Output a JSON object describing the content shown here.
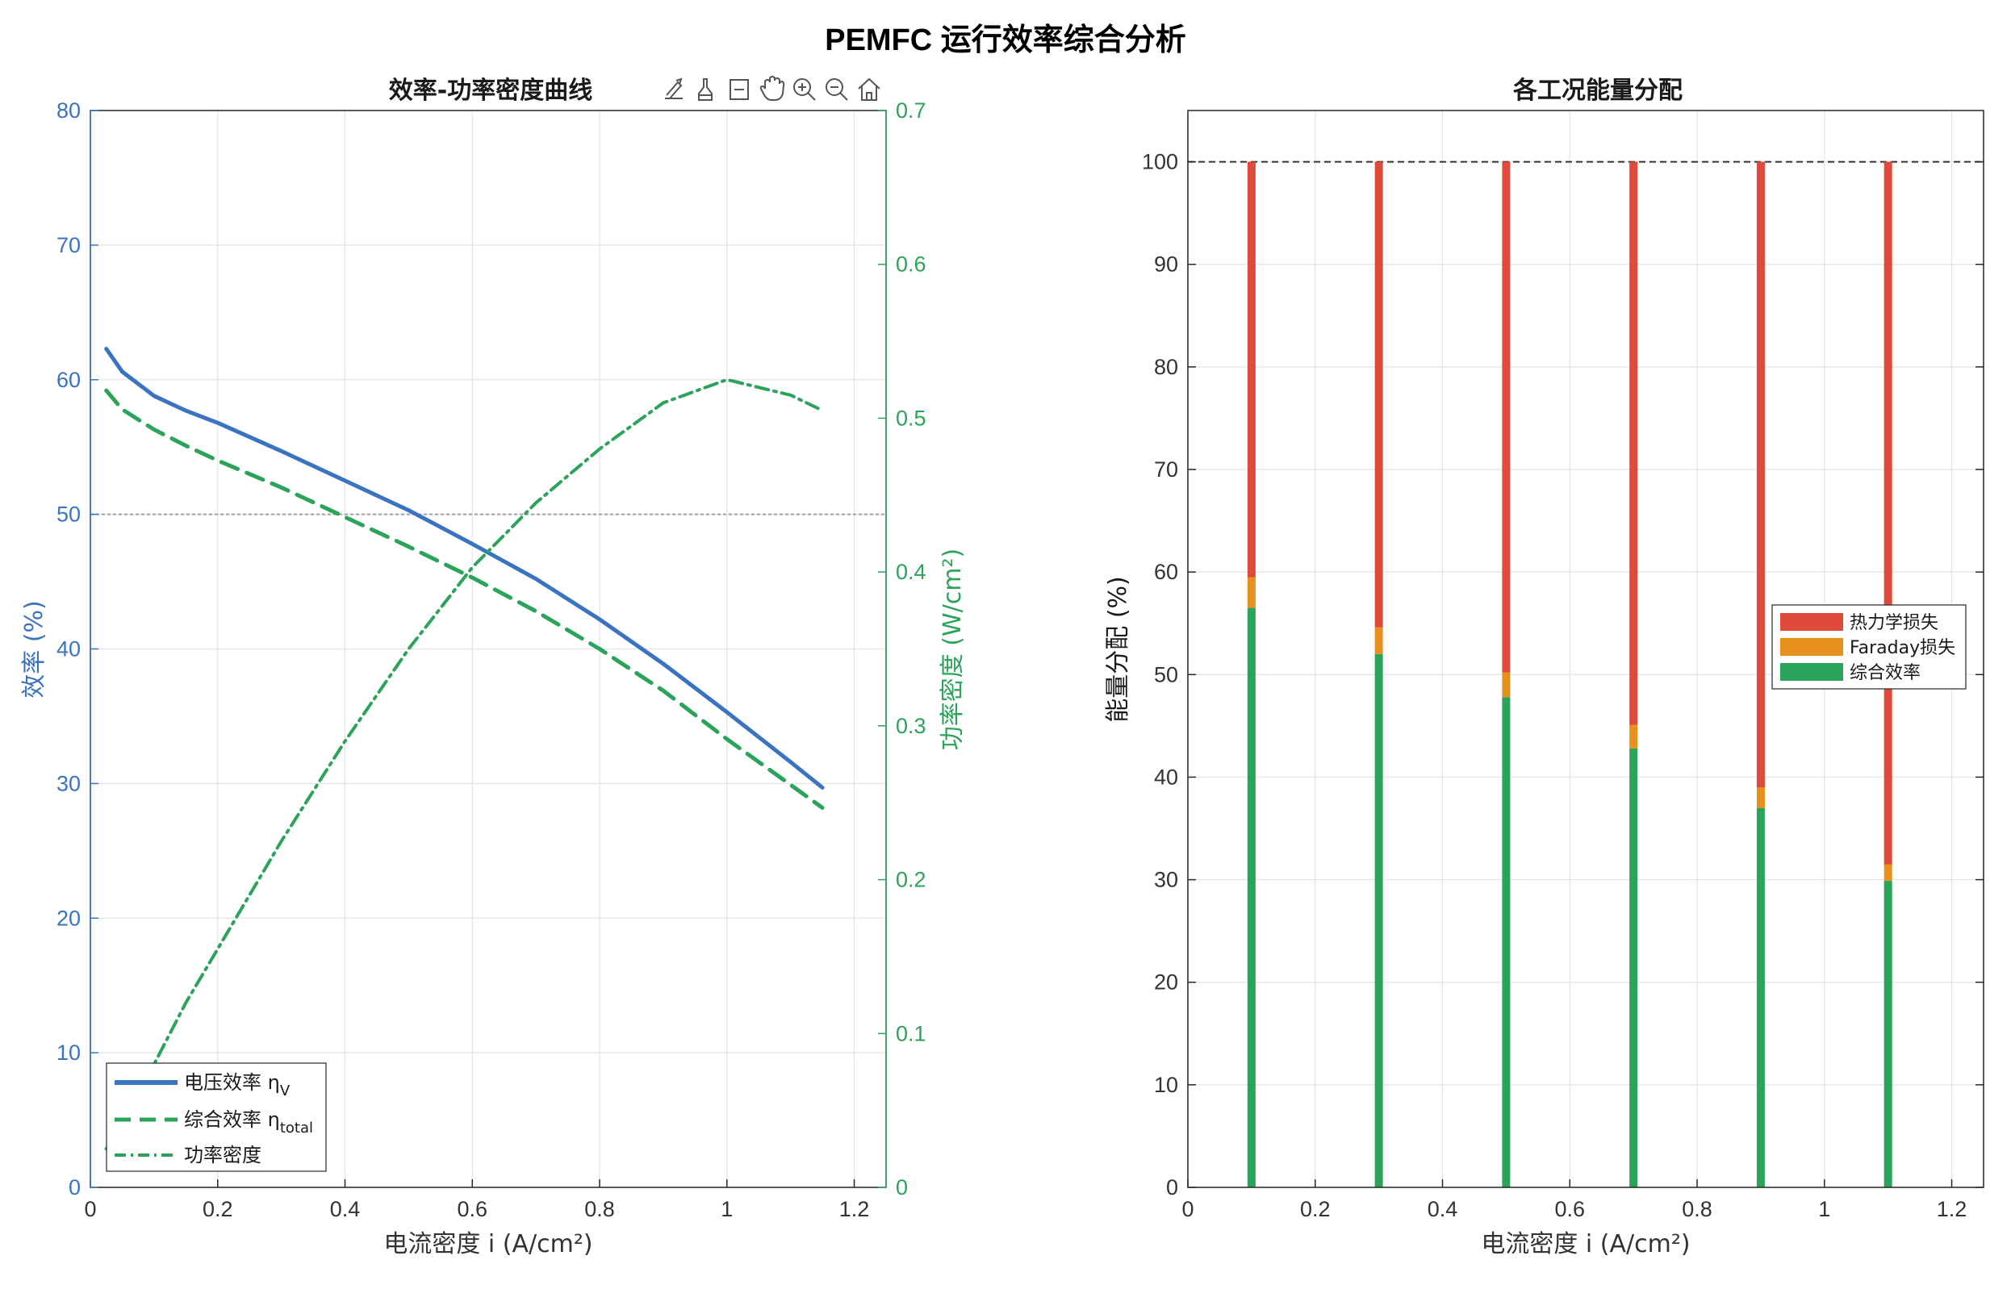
{
  "figure": {
    "title": "PEMFC 运行效率综合分析",
    "toolbar_icons": [
      "export-icon",
      "brush-icon",
      "datatip-icon",
      "pan-icon",
      "zoom-in-icon",
      "zoom-out-icon",
      "home-icon"
    ]
  },
  "colors": {
    "voltage_eff": "#3a73c0",
    "total_eff": "#2ba35a",
    "power": "#2ba35a",
    "left_axis": "#3a73c0",
    "right_axis": "#2ba35a",
    "thermo_loss": "#e04a3a",
    "faraday_loss": "#e8901e",
    "combined": "#2ba35a"
  },
  "chart_data": [
    {
      "type": "line",
      "title": "效率-功率密度曲线",
      "xlabel": "电流密度 i (A/cm²)",
      "ylabel": "效率 (%)",
      "ylabel_right": "功率密度 (W/cm²)",
      "xlim": [
        0,
        1.25
      ],
      "ylim": [
        0,
        80
      ],
      "ylim_right": [
        0,
        0.7
      ],
      "xticks": [
        0,
        0.2,
        0.4,
        0.6,
        0.8,
        1,
        1.2
      ],
      "xtick_labels": [
        "0",
        "0.2",
        "0.4",
        "0.6",
        "0.8",
        "1",
        "1.2"
      ],
      "yticks": [
        0,
        10,
        20,
        30,
        40,
        50,
        60,
        70,
        80
      ],
      "ytick_labels": [
        "0",
        "10",
        "20",
        "30",
        "40",
        "50",
        "60",
        "70",
        "80"
      ],
      "yticks_right": [
        0,
        0.1,
        0.2,
        0.3,
        0.4,
        0.5,
        0.6,
        0.7
      ],
      "ytick_labels_right": [
        "0",
        "0.1",
        "0.2",
        "0.3",
        "0.4",
        "0.5",
        "0.6",
        "0.7"
      ],
      "grid": true,
      "reference_line": 50,
      "legend": {
        "placement": "bottom-left",
        "entries": [
          {
            "text": "电压效率 η",
            "sub": "V"
          },
          {
            "text": "综合效率 η",
            "sub": "total"
          },
          {
            "text": "功率密度",
            "sub": ""
          }
        ]
      },
      "series": [
        {
          "name": "电压效率 ηV",
          "axis": "left",
          "style": "solid",
          "x": [
            0.025,
            0.05,
            0.1,
            0.15,
            0.2,
            0.3,
            0.4,
            0.5,
            0.6,
            0.7,
            0.8,
            0.9,
            1.0,
            1.1,
            1.15
          ],
          "y": [
            62.3,
            60.6,
            58.8,
            57.7,
            56.8,
            54.7,
            52.5,
            50.3,
            47.8,
            45.2,
            42.2,
            38.9,
            35.3,
            31.6,
            29.7
          ]
        },
        {
          "name": "综合效率 ηtotal",
          "axis": "left",
          "style": "dashed",
          "x": [
            0.025,
            0.05,
            0.1,
            0.15,
            0.2,
            0.3,
            0.4,
            0.5,
            0.6,
            0.7,
            0.8,
            0.9,
            1.0,
            1.1,
            1.15
          ],
          "y": [
            59.2,
            57.8,
            56.3,
            55.1,
            54.0,
            52.0,
            49.8,
            47.6,
            45.3,
            42.8,
            40.0,
            36.9,
            33.3,
            29.9,
            28.2
          ]
        },
        {
          "name": "功率密度",
          "axis": "right",
          "style": "dashdot",
          "x": [
            0.025,
            0.05,
            0.1,
            0.15,
            0.2,
            0.3,
            0.4,
            0.5,
            0.6,
            0.7,
            0.8,
            0.9,
            1.0,
            1.1,
            1.15
          ],
          "y": [
            0.025,
            0.044,
            0.08,
            0.12,
            0.155,
            0.225,
            0.29,
            0.35,
            0.403,
            0.445,
            0.48,
            0.51,
            0.525,
            0.515,
            0.505
          ]
        }
      ]
    },
    {
      "type": "bar",
      "stacked": true,
      "title": "各工况能量分配",
      "xlabel": "电流密度 i (A/cm²)",
      "ylabel": "能量分配 (%)",
      "xlim": [
        0,
        1.25
      ],
      "ylim": [
        0,
        105
      ],
      "xticks": [
        0,
        0.2,
        0.4,
        0.6,
        0.8,
        1,
        1.2
      ],
      "xtick_labels": [
        "0",
        "0.2",
        "0.4",
        "0.6",
        "0.8",
        "1",
        "1.2"
      ],
      "yticks": [
        0,
        10,
        20,
        30,
        40,
        50,
        60,
        70,
        80,
        90,
        100
      ],
      "ytick_labels": [
        "0",
        "10",
        "20",
        "30",
        "40",
        "50",
        "60",
        "70",
        "80",
        "90",
        "100"
      ],
      "grid": true,
      "reference_line": 100,
      "legend": {
        "placement": "right"
      },
      "x": [
        0.1,
        0.3,
        0.5,
        0.7,
        0.9,
        1.1
      ],
      "series": [
        {
          "name": "综合效率",
          "values": [
            56.5,
            52.0,
            47.8,
            42.8,
            37.0,
            29.9
          ]
        },
        {
          "name": "Faraday损失",
          "values": [
            3.0,
            2.6,
            2.4,
            2.3,
            2.0,
            1.6
          ]
        },
        {
          "name": "热力学损失",
          "values": [
            40.5,
            45.4,
            49.8,
            54.9,
            61.0,
            68.5
          ]
        }
      ],
      "legend_order": [
        "热力学损失",
        "Faraday损失",
        "综合效率"
      ]
    }
  ]
}
